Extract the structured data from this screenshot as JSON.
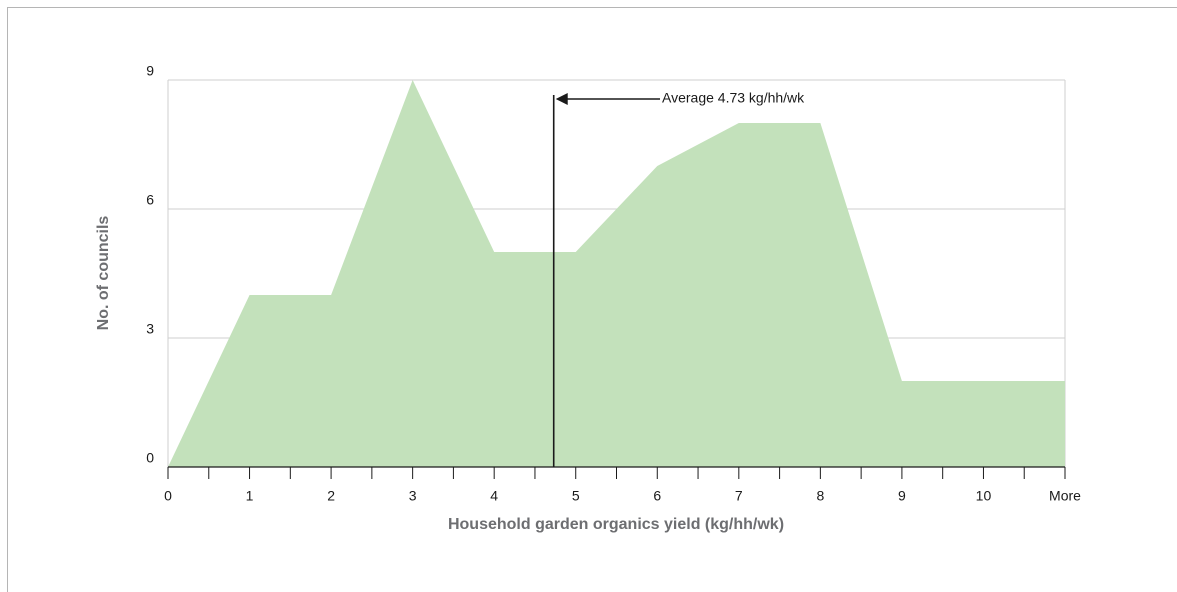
{
  "chart_data": {
    "type": "area",
    "xlabel": "Household garden organics yield (kg/hh/wk)",
    "ylabel": "No. of councils",
    "categories": [
      "0",
      "1",
      "2",
      "3",
      "4",
      "5",
      "6",
      "7",
      "8",
      "9",
      "10",
      "More"
    ],
    "values": [
      0,
      4,
      4,
      9,
      5,
      5,
      7,
      8,
      8,
      2,
      2,
      2
    ],
    "color": "#c3e1bb",
    "ylim": [
      0,
      9
    ],
    "yticks": [
      0,
      3,
      6,
      9
    ],
    "grid": true,
    "average": 4.73,
    "annotation": "Average 4.73 kg/hh/wk"
  }
}
